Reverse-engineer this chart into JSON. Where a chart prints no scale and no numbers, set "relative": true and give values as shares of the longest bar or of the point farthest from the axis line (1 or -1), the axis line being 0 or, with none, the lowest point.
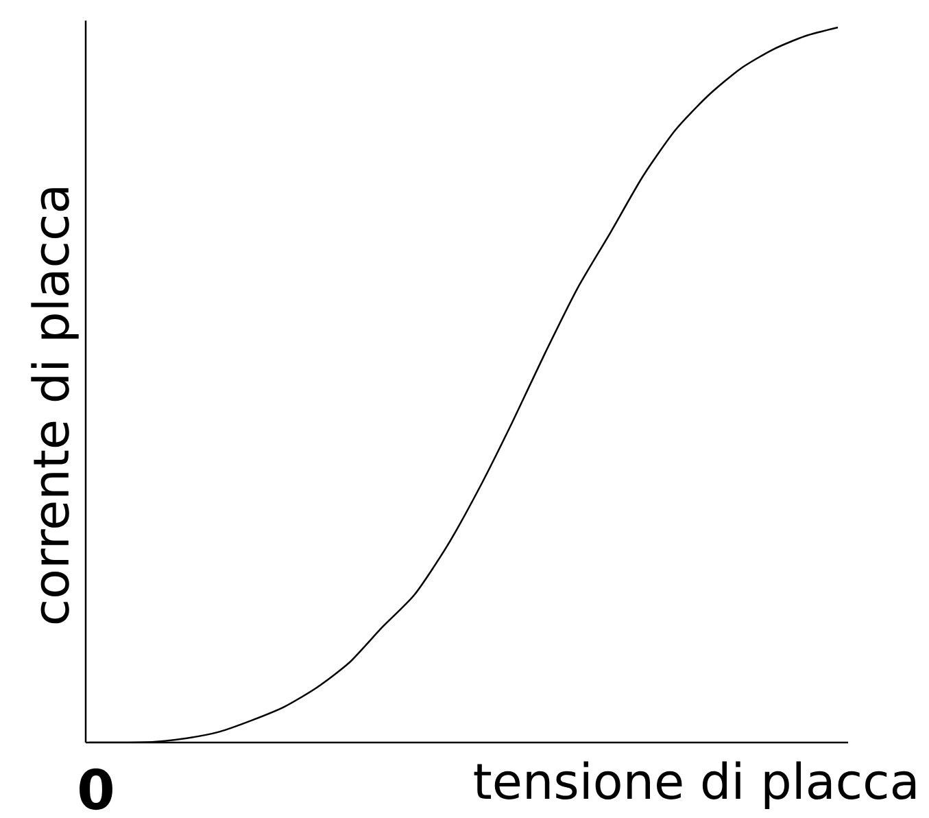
{
  "chart_data": {
    "type": "line",
    "relative": true,
    "xlabel": "tensione di placca",
    "ylabel": "corrente di placca",
    "annotations": [
      "0"
    ],
    "categories": [
      null,
      null,
      null,
      null,
      null,
      null,
      null,
      null,
      null,
      null,
      null,
      null,
      null,
      null,
      null,
      null,
      null,
      null,
      null,
      null,
      null,
      null,
      null,
      null
    ],
    "values": [
      0,
      0,
      0.001,
      0.006,
      0.015,
      0.031,
      0.05,
      0.077,
      0.112,
      0.161,
      0.207,
      0.275,
      0.357,
      0.448,
      0.544,
      0.635,
      0.712,
      0.791,
      0.856,
      0.904,
      0.942,
      0.969,
      0.988,
      1.0
    ],
    "color": "#000000"
  }
}
